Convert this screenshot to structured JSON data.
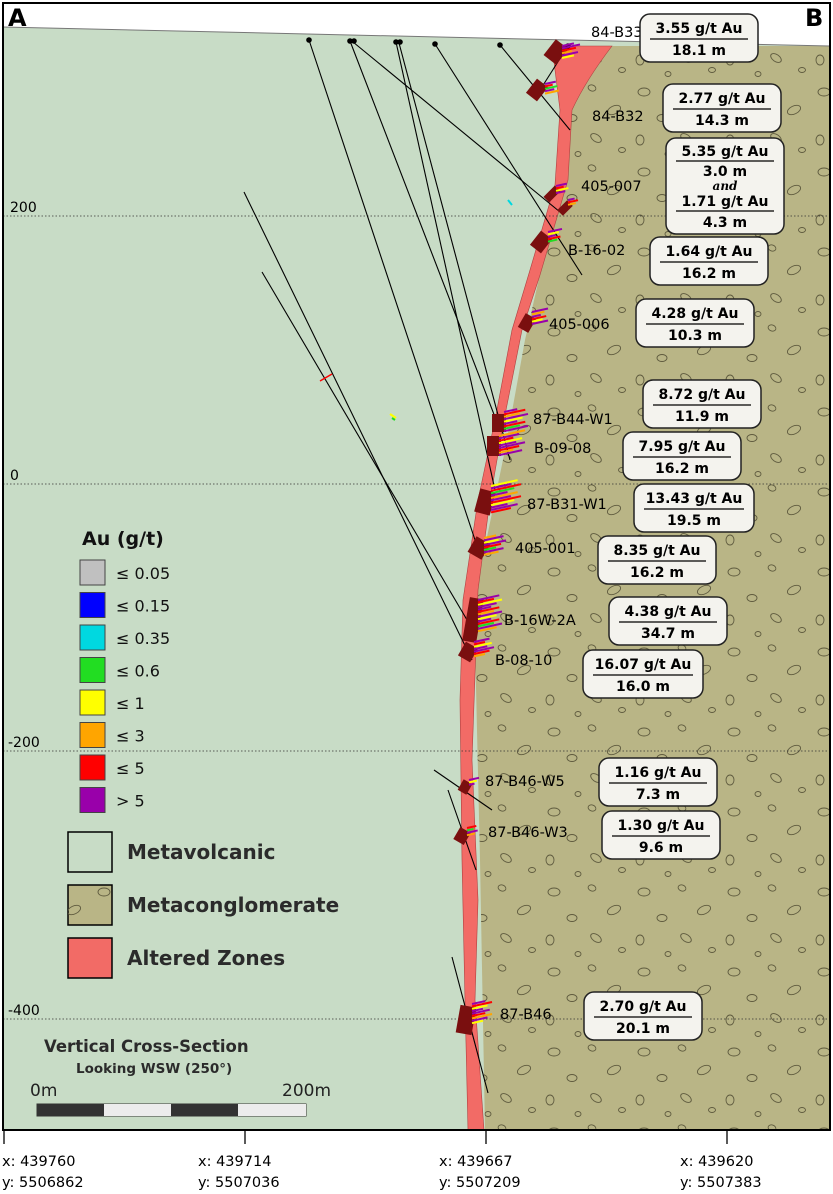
{
  "corners": {
    "left": "A",
    "right": "B"
  },
  "elevations": [
    "200",
    "0",
    "-200",
    "-400"
  ],
  "legend": {
    "title": "Au (g/t)",
    "items": [
      {
        "label": "≤ 0.05",
        "color": "#c0c0c0"
      },
      {
        "label": "≤ 0.15",
        "color": "#0000ff"
      },
      {
        "label": "≤ 0.35",
        "color": "#00d8e0"
      },
      {
        "label": "≤ 0.6",
        "color": "#22dd22"
      },
      {
        "label": "≤ 1",
        "color": "#ffff00"
      },
      {
        "label": "≤ 3",
        "color": "#ffa500"
      },
      {
        "label": "≤ 5",
        "color": "#ff0000"
      },
      {
        "label": "> 5",
        "color": "#9900aa"
      }
    ],
    "rocks": [
      {
        "label": "Metavolcanic",
        "color": "#c8dcc6"
      },
      {
        "label": "Metaconglomerate",
        "color": "#b9b586"
      },
      {
        "label": "Altered Zones",
        "color": "#f26b66"
      }
    ]
  },
  "holes": [
    "84-B33",
    "84-B32",
    "405-007",
    "B-16-02",
    "405-006",
    "87-B44-W1",
    "B-09-08",
    "87-B31-W1",
    "405-001",
    "B-16W-2A",
    "B-08-10",
    "87-B46-W5",
    "87-B46-W3",
    "87-B46"
  ],
  "assays": [
    {
      "grade": "3.55 g/t Au",
      "width": "18.1 m"
    },
    {
      "grade": "2.77 g/t Au",
      "width": "14.3 m"
    },
    {
      "grade": "5.35 g/t Au",
      "width": "3.0 m",
      "joiner": "and",
      "grade2": "1.71 g/t Au",
      "width2": "4.3 m"
    },
    {
      "grade": "1.64 g/t Au",
      "width": "16.2 m"
    },
    {
      "grade": "4.28 g/t Au",
      "width": "10.3 m"
    },
    {
      "grade": "8.72 g/t Au",
      "width": "11.9 m"
    },
    {
      "grade": "7.95 g/t Au",
      "width": "16.2 m"
    },
    {
      "grade": "13.43 g/t Au",
      "width": "19.5 m"
    },
    {
      "grade": "8.35 g/t Au",
      "width": "16.2 m"
    },
    {
      "grade": "4.38 g/t Au",
      "width": "34.7 m"
    },
    {
      "grade": "16.07 g/t Au",
      "width": "16.0 m"
    },
    {
      "grade": "1.16 g/t Au",
      "width": "7.3 m"
    },
    {
      "grade": "1.30 g/t Au",
      "width": "9.6 m"
    },
    {
      "grade": "2.70 g/t Au",
      "width": "20.1 m"
    }
  ],
  "caption": {
    "title": "Vertical Cross-Section",
    "subtitle": "Looking WSW (250°)"
  },
  "scale": {
    "start": "0m",
    "end": "200m"
  },
  "coordinates": [
    {
      "x": "x: 439760",
      "y": "y: 5506862"
    },
    {
      "x": "x: 439714",
      "y": "y: 5507036"
    },
    {
      "x": "x: 439667",
      "y": "y: 5507209"
    },
    {
      "x": "x: 439620",
      "y": "y: 5507383"
    }
  ]
}
